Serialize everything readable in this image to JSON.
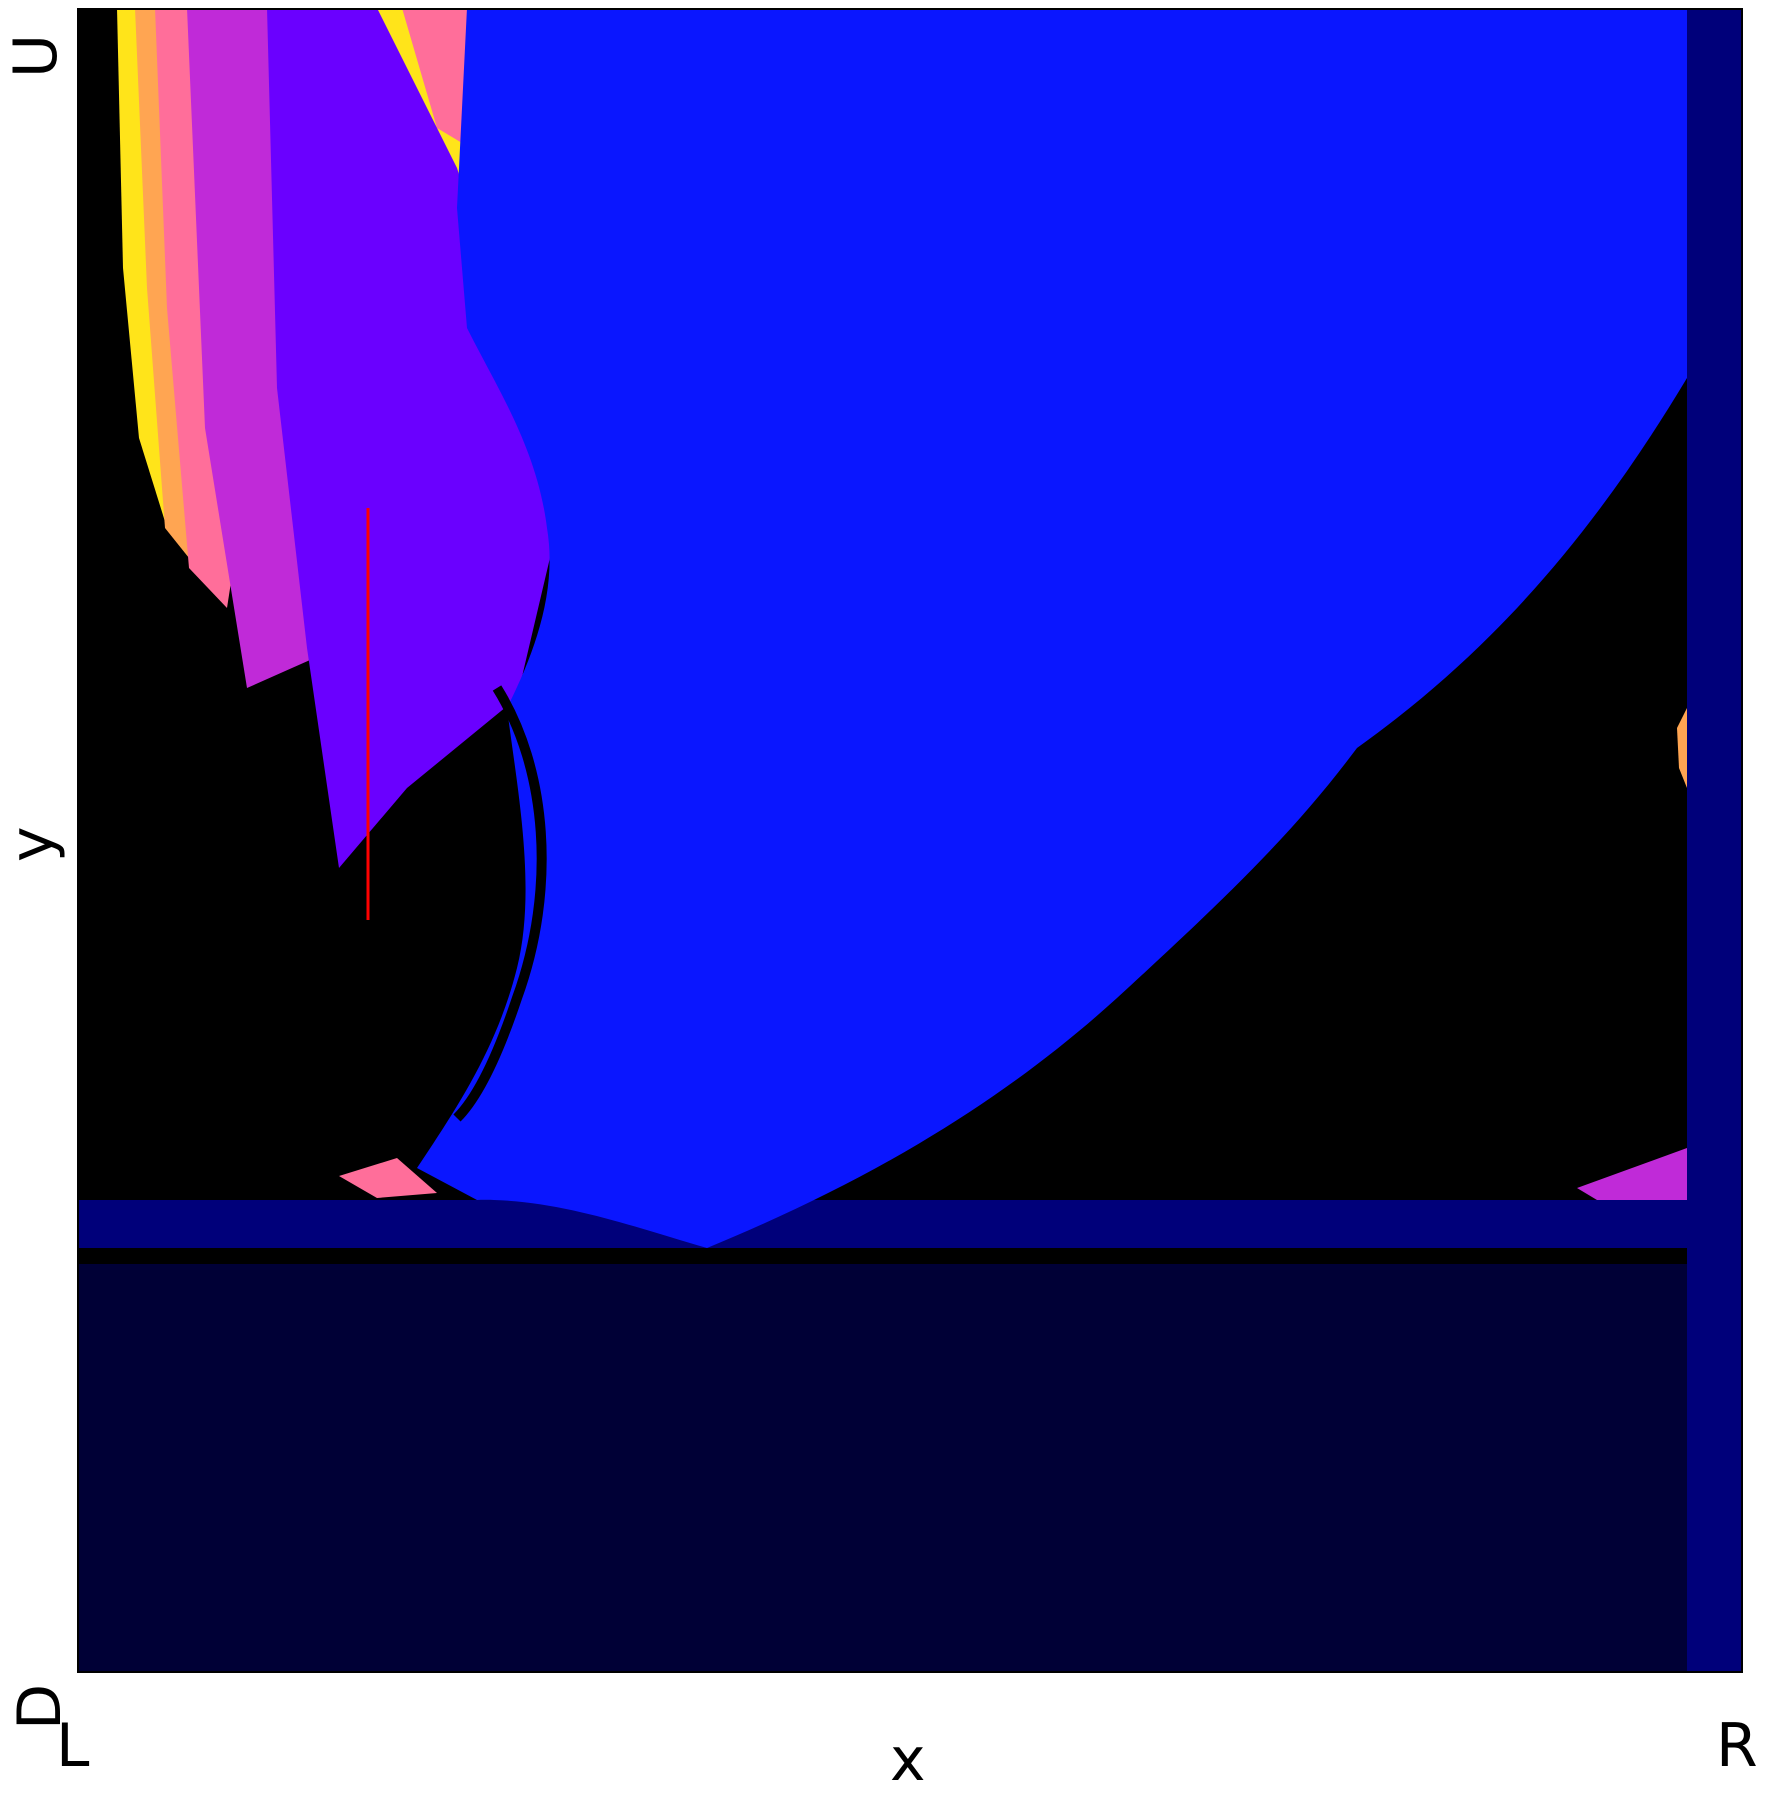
{
  "chart_data": {
    "type": "heatmap",
    "title": "",
    "xlabel": "x",
    "ylabel": "y",
    "x_end_labels": [
      "L",
      "R"
    ],
    "y_end_labels": [
      "D",
      "U"
    ],
    "grid": false,
    "legend": "none",
    "colors": {
      "background": "#000000",
      "large_region": "#0a16ff",
      "plume_violet": "#6a00ff",
      "plume_orchid": "#c02ad8",
      "plume_pink": "#ff6e9a",
      "plume_orange": "#ffa552",
      "plume_yellow": "#ffe41a",
      "plume_white": "#ffffff",
      "band_navy": "#00007a",
      "bottom_dark": "#000036",
      "marker_line": "#ff0000"
    }
  }
}
